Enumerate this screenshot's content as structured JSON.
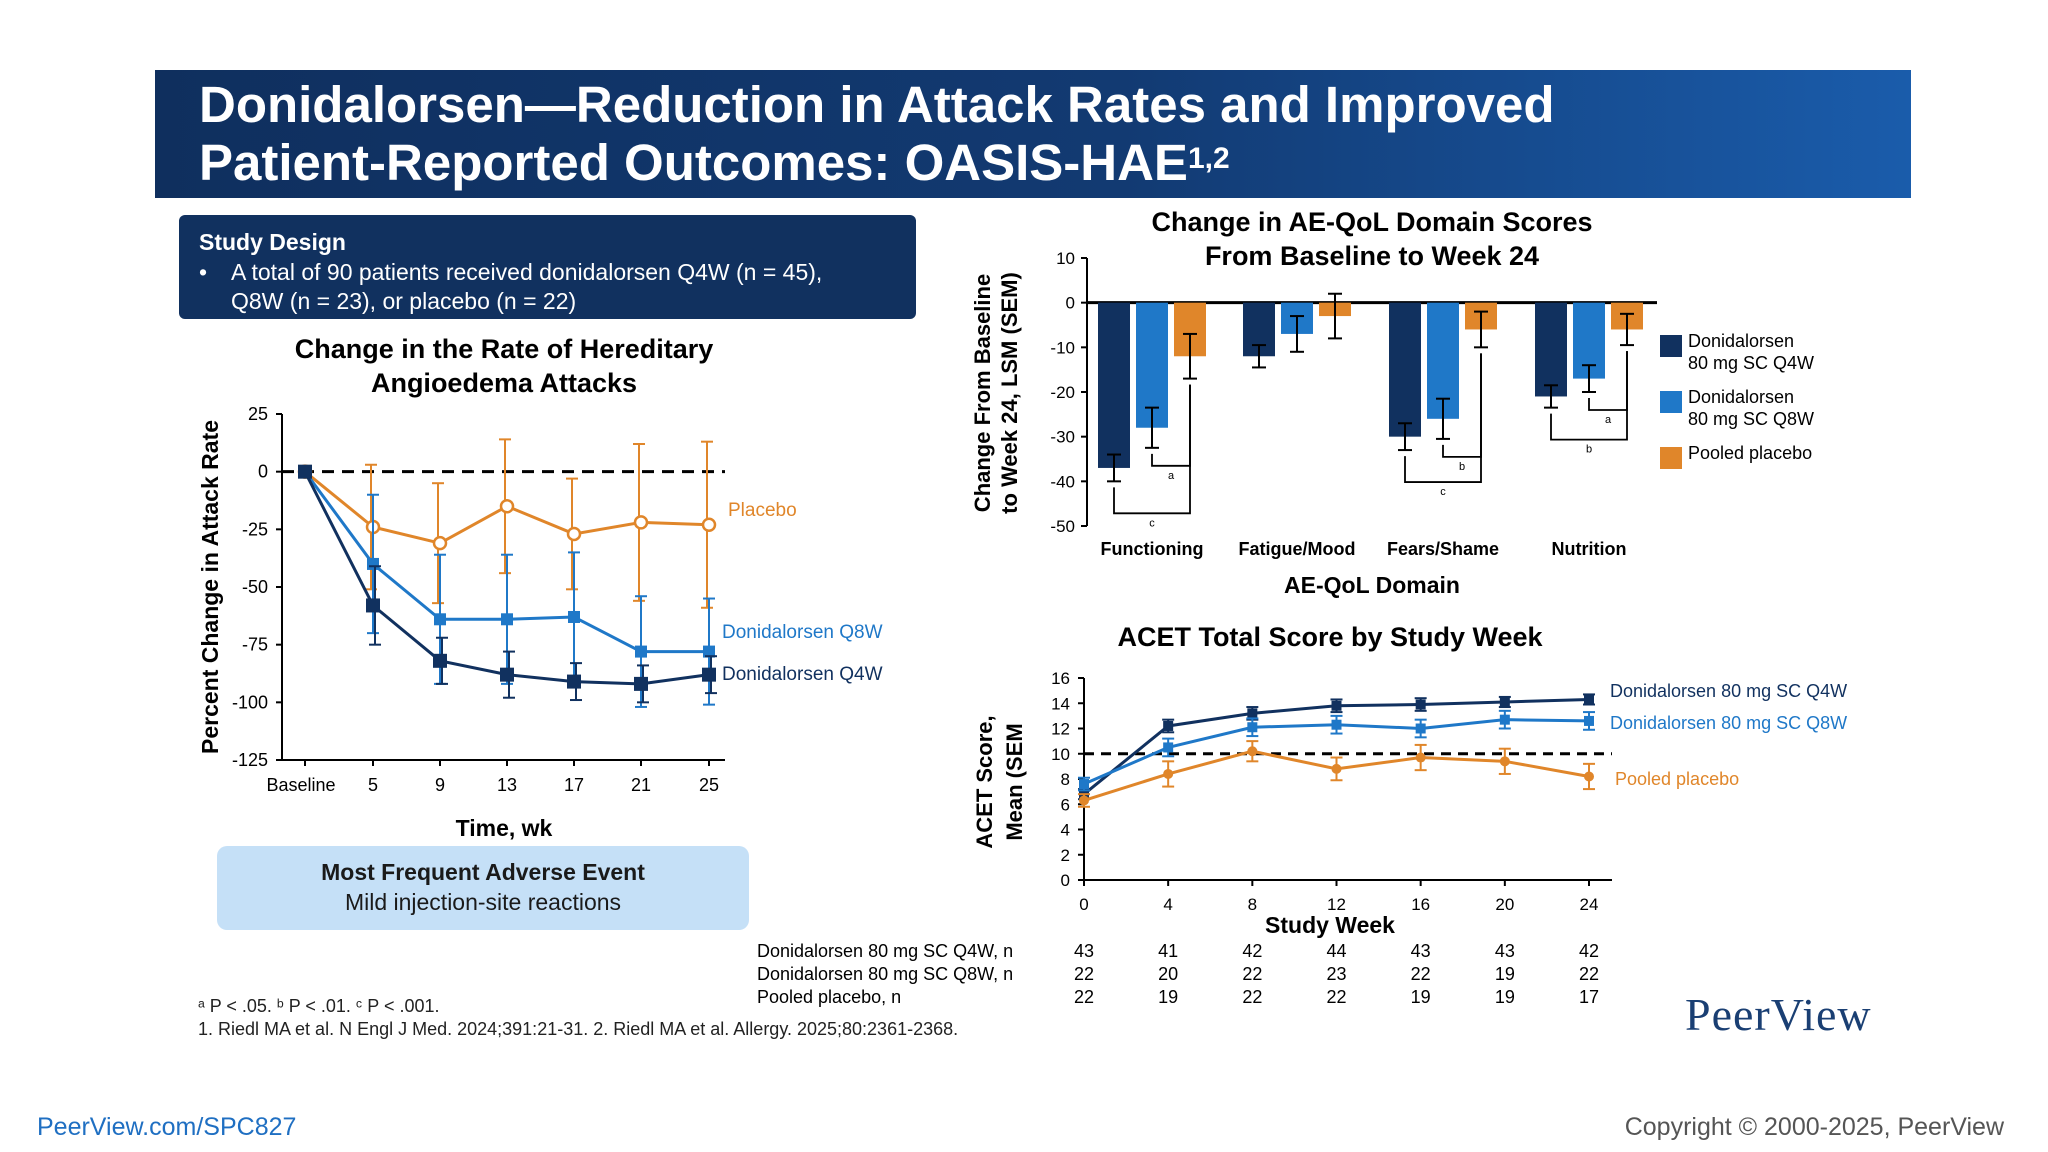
{
  "title": "Donidalorsen—Reduction in Attack Rates and Improved Patient-Reported Outcomes: OASIS-HAE",
  "title_line1": "Donidalorsen—Reduction in Attack Rates and Improved",
  "title_line2": "Patient-Reported Outcomes: OASIS-HAE",
  "title_sup": "1,2",
  "study_design": {
    "heading": "Study Design",
    "bullet": "•",
    "line1": "A total of 90 patients received donidalorsen Q4W (n = 45),",
    "line2": "Q8W (n = 23), or placebo (n = 22)"
  },
  "adverse_event": {
    "heading": "Most Frequent Adverse Event",
    "text": "Mild injection-site reactions"
  },
  "footnotes": {
    "sig": "ᵃ P < .05. ᵇ P < .01. ᶜ P < .001.",
    "refs": "1. Riedl MA et al. N Engl J Med. 2024;391:21-31. 2. Riedl MA et al. Allergy. 2025;80:2361-2368."
  },
  "footer": {
    "url": "PeerView.com/SPC827",
    "copyright": "Copyright © 2000-2025, PeerView",
    "logo": "PeerView"
  },
  "colors": {
    "q4w": "#11315f",
    "q8w": "#1f78c8",
    "placebo": "#e0862a",
    "banner": "#123a72"
  },
  "chart_data": [
    {
      "type": "line",
      "title": "Change in the Rate of Hereditary Angioedema Attacks",
      "title_line1": "Change in the Rate of Hereditary",
      "title_line2": "Angioedema Attacks",
      "xlabel": "Time, wk",
      "ylabel": "Percent Change in Attack Rate",
      "x": [
        "Baseline",
        "5",
        "9",
        "13",
        "17",
        "21",
        "25"
      ],
      "yticks": [
        25,
        0,
        -25,
        -50,
        -75,
        -100,
        -125
      ],
      "ylim": [
        -125,
        25
      ],
      "reference_line": 0,
      "series": [
        {
          "name": "Placebo",
          "values": [
            0,
            -24,
            -31,
            -15,
            -27,
            -22,
            -23
          ],
          "err": [
            0,
            27,
            26,
            29,
            24,
            34,
            36
          ]
        },
        {
          "name": "Donidalorsen Q8W",
          "values": [
            0,
            -40,
            -64,
            -64,
            -63,
            -78,
            -78
          ],
          "err": [
            0,
            30,
            28,
            28,
            28,
            24,
            23
          ]
        },
        {
          "name": "Donidalorsen Q4W",
          "values": [
            0,
            -58,
            -82,
            -88,
            -91,
            -92,
            -88
          ],
          "err": [
            0,
            17,
            10,
            10,
            8,
            8,
            8
          ]
        }
      ]
    },
    {
      "type": "bar",
      "title": "Change in AE-QoL Domain Scores From Baseline to Week 24",
      "title_line1": "Change in AE-QoL Domain Scores",
      "title_line2": "From Baseline to Week 24",
      "xlabel": "AE-QoL Domain",
      "ylabel_line1": "Change From Baseline",
      "ylabel_line2": "to Week 24, LSM (SEM)",
      "categories": [
        "Functioning",
        "Fatigue/Mood",
        "Fears/Shame",
        "Nutrition"
      ],
      "yticks": [
        10,
        0,
        -10,
        -20,
        -30,
        -40,
        -50
      ],
      "ylim": [
        -50,
        10
      ],
      "legend_position": "right",
      "series": [
        {
          "name": "Donidalorsen 80 mg SC Q4W",
          "name_line1": "Donidalorsen",
          "name_line2": "80 mg SC Q4W",
          "values": [
            -37,
            -12,
            -30,
            -21
          ],
          "err": [
            3,
            2.5,
            3,
            2.5
          ]
        },
        {
          "name": "Donidalorsen 80 mg SC Q8W",
          "name_line1": "Donidalorsen",
          "name_line2": "80 mg SC Q8W",
          "values": [
            -28,
            -7,
            -26,
            -17
          ],
          "err": [
            4.5,
            4,
            4.5,
            3
          ]
        },
        {
          "name": "Pooled placebo",
          "name_line1": "Pooled placebo",
          "name_line2": "",
          "values": [
            -12,
            -3,
            -6,
            -6
          ],
          "err": [
            5,
            5,
            4,
            3.5
          ]
        }
      ],
      "significance": [
        {
          "category": 0,
          "label": "c",
          "pair": "q4w-placebo"
        },
        {
          "category": 0,
          "label": "a",
          "pair": "q8w-placebo"
        },
        {
          "category": 2,
          "label": "c",
          "pair": "q4w-placebo"
        },
        {
          "category": 2,
          "label": "b",
          "pair": "q8w-placebo"
        },
        {
          "category": 3,
          "label": "b",
          "pair": "q4w-placebo"
        },
        {
          "category": 3,
          "label": "a",
          "pair": "q8w-placebo"
        }
      ]
    },
    {
      "type": "line",
      "title": "ACET Total Score by Study Week",
      "xlabel": "Study Week",
      "ylabel_line1": "ACET Score,",
      "ylabel_line2": "Mean (SEM",
      "x": [
        0,
        4,
        8,
        12,
        16,
        20,
        24
      ],
      "yticks": [
        0,
        2,
        4,
        6,
        8,
        10,
        12,
        14,
        16
      ],
      "ylim": [
        0,
        16
      ],
      "reference_line": 10,
      "series": [
        {
          "name": "Donidalorsen 80 mg SC Q4W",
          "values": [
            6.8,
            12.2,
            13.2,
            13.8,
            13.9,
            14.1,
            14.3
          ],
          "err": [
            0.4,
            0.5,
            0.5,
            0.5,
            0.5,
            0.4,
            0.4
          ]
        },
        {
          "name": "Donidalorsen 80 mg SC Q8W",
          "values": [
            7.6,
            10.5,
            12.1,
            12.3,
            12.0,
            12.7,
            12.6
          ],
          "err": [
            0.5,
            0.7,
            0.7,
            0.7,
            0.7,
            0.7,
            0.7
          ]
        },
        {
          "name": "Pooled placebo",
          "values": [
            6.3,
            8.4,
            10.2,
            8.8,
            9.7,
            9.4,
            8.2
          ],
          "err": [
            0.5,
            1.0,
            0.8,
            0.9,
            1.0,
            1.0,
            1.0
          ]
        }
      ],
      "n_table": {
        "rows": [
          {
            "label": "Donidalorsen 80 mg SC Q4W, n",
            "values": [
              43,
              41,
              42,
              44,
              43,
              43,
              42
            ]
          },
          {
            "label": "Donidalorsen 80 mg SC Q8W, n",
            "values": [
              22,
              20,
              22,
              23,
              22,
              19,
              22
            ]
          },
          {
            "label": "Pooled placebo, n",
            "values": [
              22,
              19,
              22,
              22,
              19,
              19,
              17
            ]
          }
        ]
      }
    }
  ]
}
